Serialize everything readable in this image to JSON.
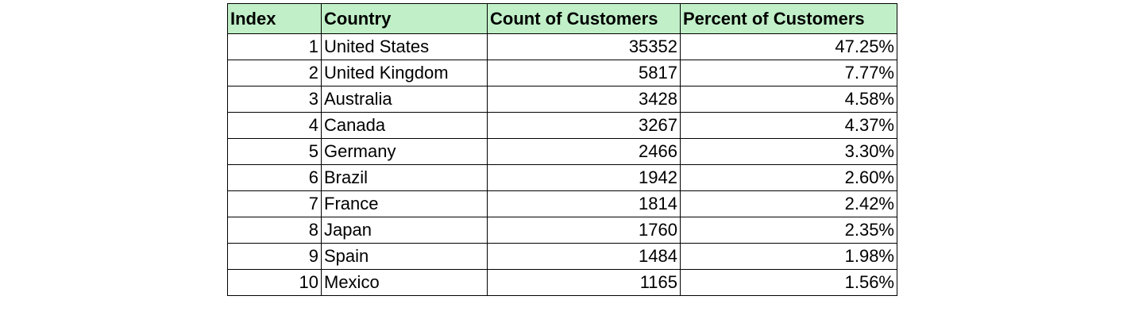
{
  "table": {
    "headers": {
      "index": "Index",
      "country": "Country",
      "count": "Count of Customers",
      "percent": "Percent of Customers"
    },
    "header_bg": "#c1f0c8",
    "rows": [
      {
        "index": "1",
        "country": "United States",
        "count": "35352",
        "percent": "47.25%"
      },
      {
        "index": "2",
        "country": "United Kingdom",
        "count": "5817",
        "percent": "7.77%"
      },
      {
        "index": "3",
        "country": "Australia",
        "count": "3428",
        "percent": "4.58%"
      },
      {
        "index": "4",
        "country": "Canada",
        "count": "3267",
        "percent": "4.37%"
      },
      {
        "index": "5",
        "country": "Germany",
        "count": "2466",
        "percent": "3.30%"
      },
      {
        "index": "6",
        "country": "Brazil",
        "count": "1942",
        "percent": "2.60%"
      },
      {
        "index": "7",
        "country": "France",
        "count": "1814",
        "percent": "2.42%"
      },
      {
        "index": "8",
        "country": "Japan",
        "count": "1760",
        "percent": "2.35%"
      },
      {
        "index": "9",
        "country": "Spain",
        "count": "1484",
        "percent": "1.98%"
      },
      {
        "index": "10",
        "country": "Mexico",
        "count": "1165",
        "percent": "1.56%"
      }
    ]
  }
}
